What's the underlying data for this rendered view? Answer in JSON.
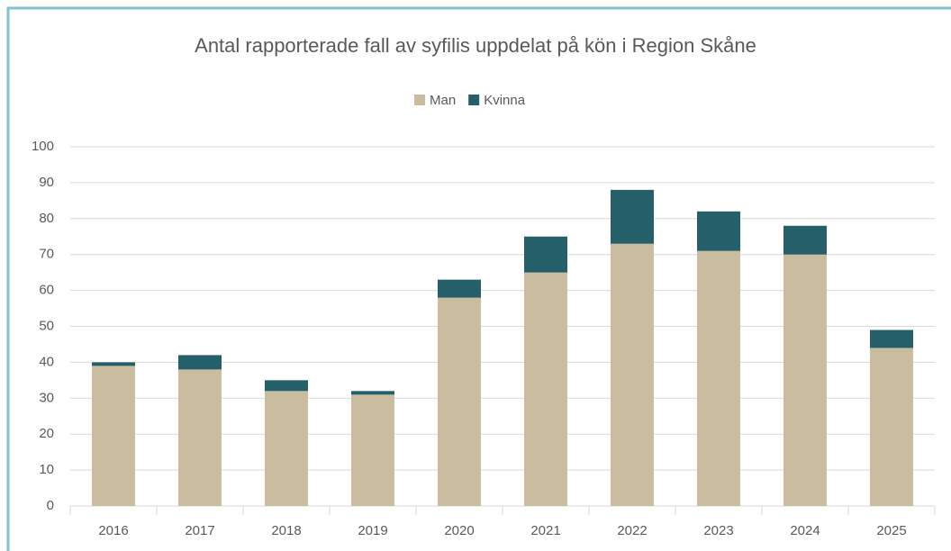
{
  "chart_data": {
    "type": "stacked_bar",
    "title": "Antal rapporterade fall av syfilis uppdelat på kön i Region Skåne",
    "categories": [
      "2016",
      "2017",
      "2018",
      "2019",
      "2020",
      "2021",
      "2022",
      "2023",
      "2024",
      "2025"
    ],
    "series": [
      {
        "name": "Man",
        "color": "#c9bc9f",
        "values": [
          39,
          38,
          32,
          31,
          58,
          65,
          73,
          71,
          70,
          44
        ]
      },
      {
        "name": "Kvinna",
        "color": "#245f6a",
        "values": [
          1,
          4,
          3,
          1,
          5,
          10,
          15,
          11,
          8,
          5
        ]
      }
    ],
    "ylim": [
      0,
      100
    ],
    "yticks": [
      0,
      10,
      20,
      30,
      40,
      50,
      60,
      70,
      80,
      90,
      100
    ],
    "grid": true,
    "legend": "top"
  }
}
